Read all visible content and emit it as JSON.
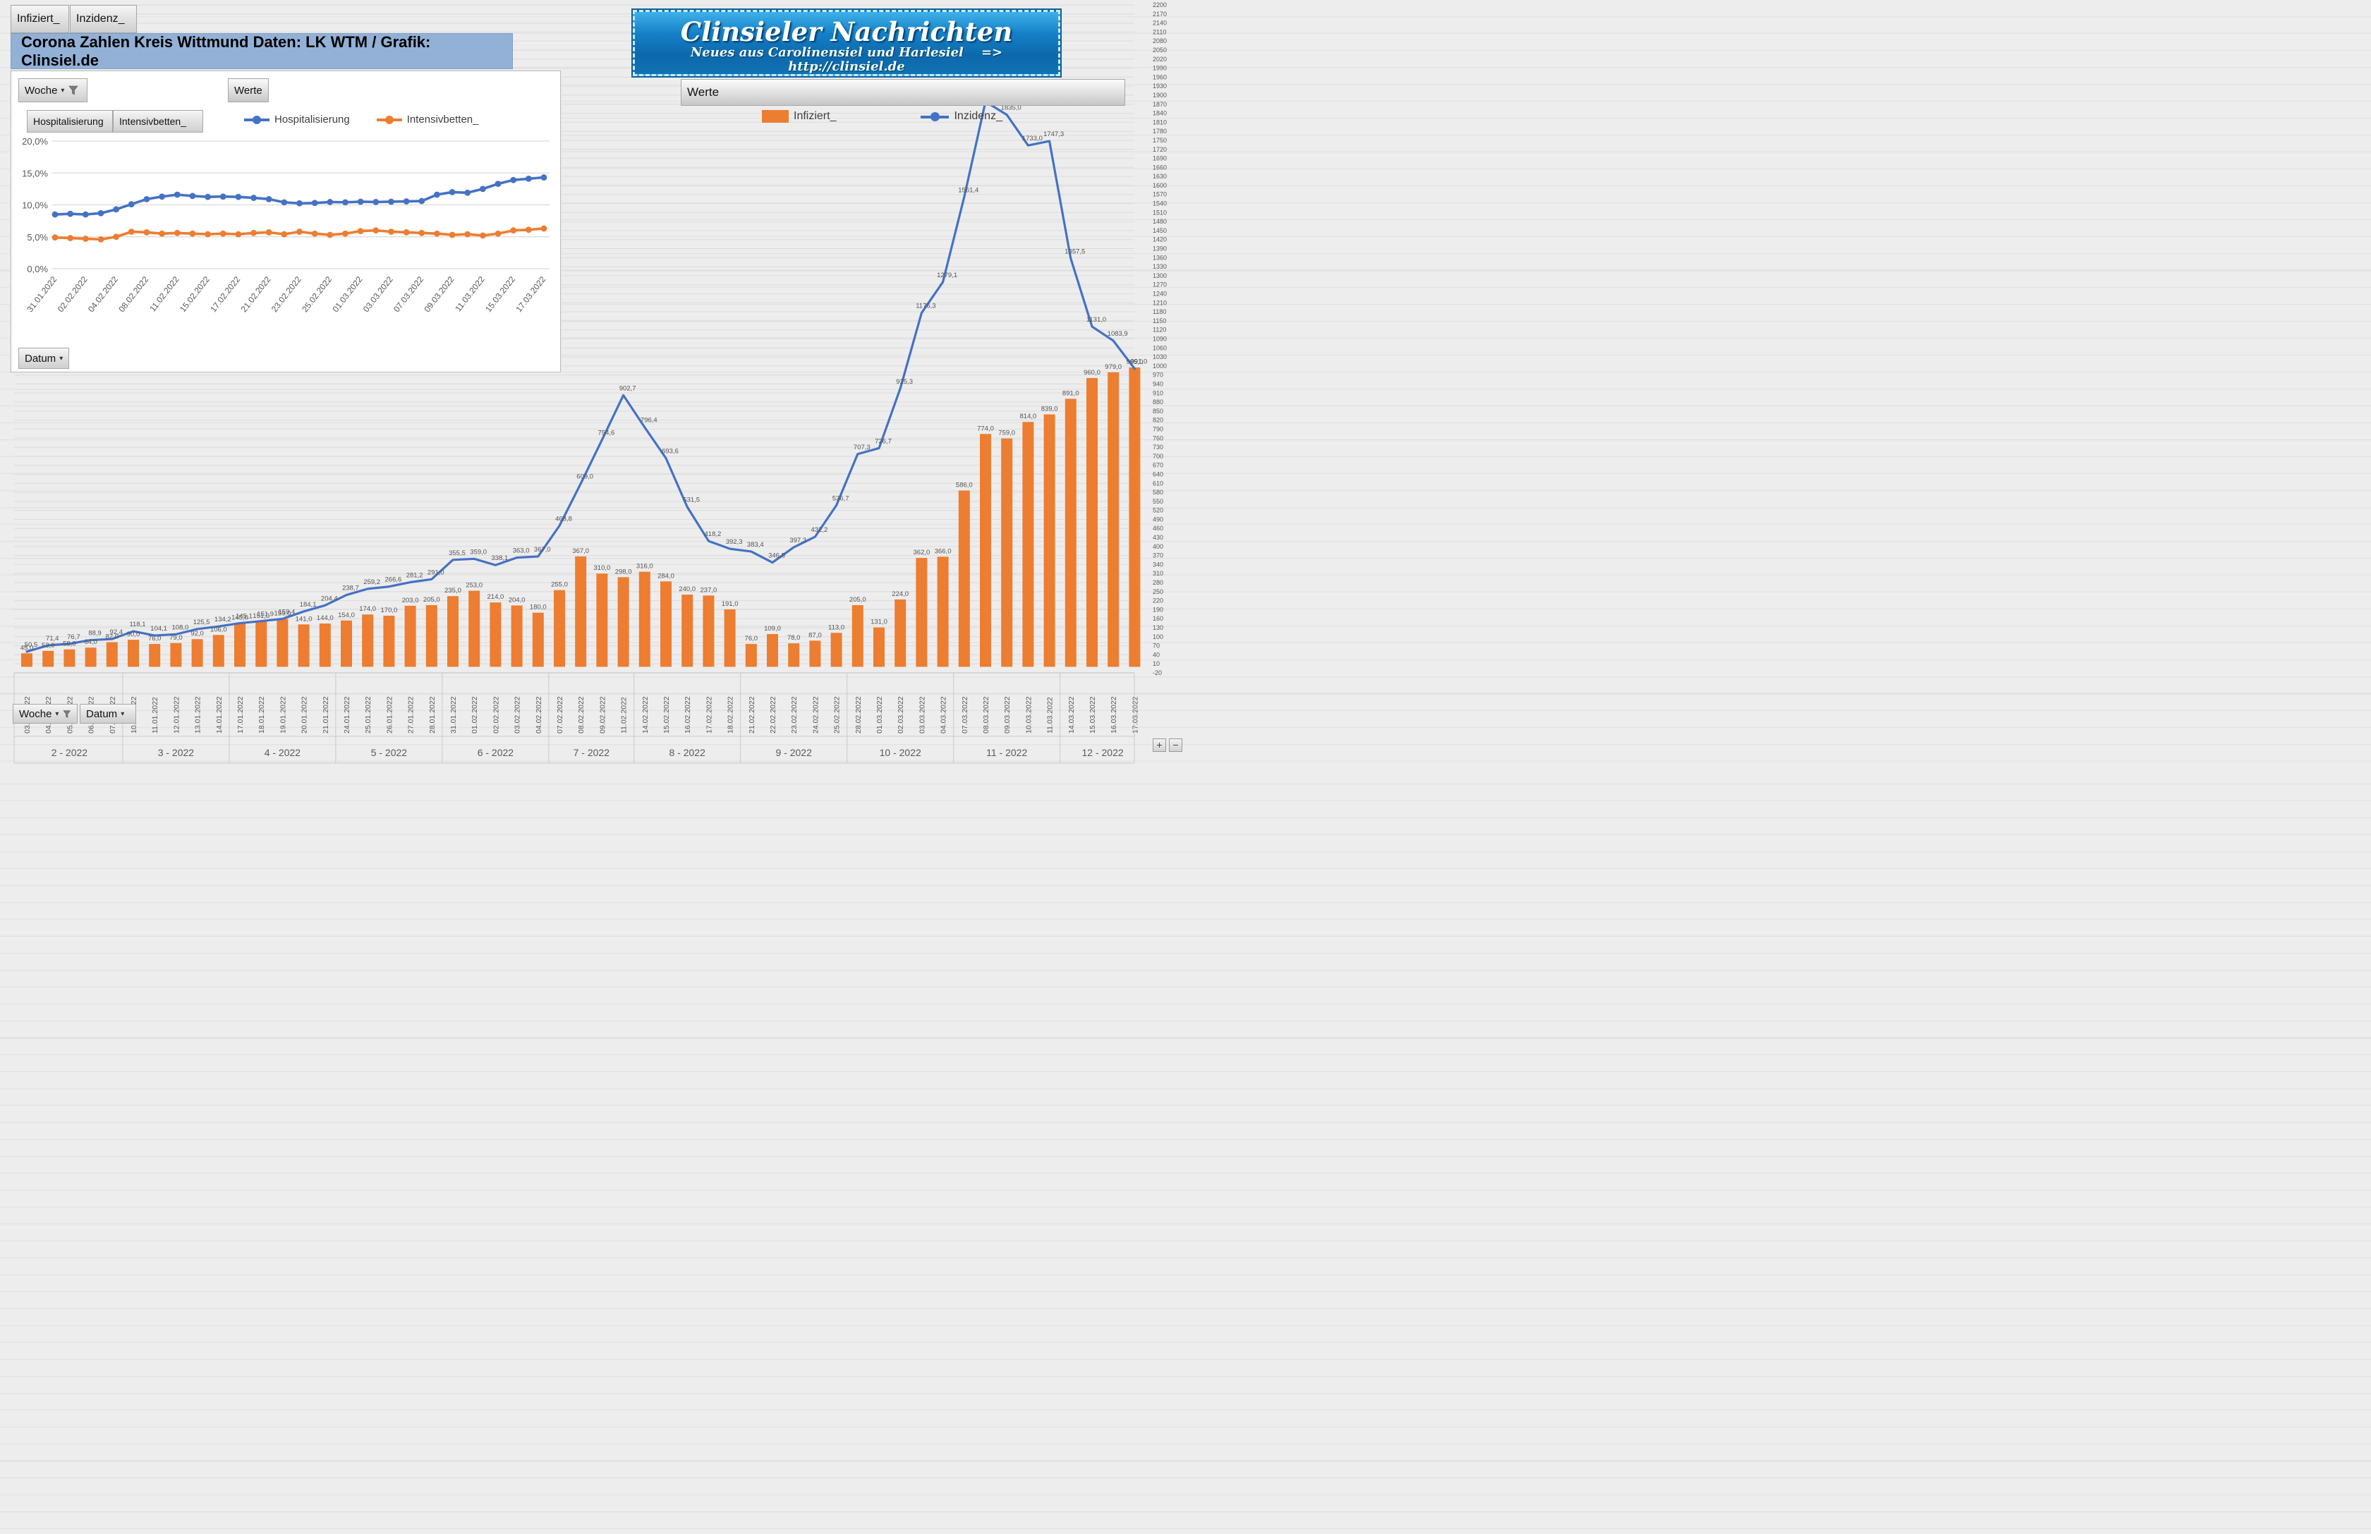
{
  "tabs": [
    {
      "label": "Infiziert_"
    },
    {
      "label": "Inzidenz_"
    }
  ],
  "title": "Corona Zahlen Kreis Wittmund  Daten: LK WTM / Grafik: Clinsiel.de",
  "banner": {
    "line1": "Clinsieler Nachrichten",
    "line2": "Neues aus Carolinensiel und Harlesiel",
    "line2b": "=> http://clinsiel.de"
  },
  "inset": {
    "woche_button": "Woche",
    "werte_button": "Werte",
    "datum_button": "Datum",
    "field_buttons": [
      "Hospitalisierung",
      "Intensivbetten_"
    ],
    "legend": [
      {
        "label": "Hospitalisierung",
        "color": "#4472C4"
      },
      {
        "label": "Intensivbetten_",
        "color": "#ED7D31"
      }
    ]
  },
  "main": {
    "werte_header": "Werte",
    "woche_button": "Woche",
    "datum_button": "Datum",
    "zoom_plus": "+",
    "zoom_minus": "−",
    "legend": [
      {
        "label": "Infiziert_",
        "color": "#ED7D31",
        "type": "bar"
      },
      {
        "label": "Inzidenz_",
        "color": "#4472C4",
        "type": "line"
      }
    ]
  },
  "chart_data": [
    {
      "type": "line",
      "title": "",
      "x": [
        "31.01.2022",
        "01.02.2022",
        "02.02.2022",
        "03.02.2022",
        "04.02.2022",
        "07.02.2022",
        "08.02.2022",
        "09.02.2022",
        "11.02.2022",
        "14.02.2022",
        "15.02.2022",
        "16.02.2022",
        "17.02.2022",
        "18.02.2022",
        "21.02.2022",
        "22.02.2022",
        "23.02.2022",
        "24.02.2022",
        "25.02.2022",
        "28.02.2022",
        "01.03.2022",
        "02.03.2022",
        "03.03.2022",
        "04.03.2022",
        "07.03.2022",
        "08.03.2022",
        "09.03.2022",
        "10.03.2022",
        "11.03.2022",
        "14.03.2022",
        "15.03.2022",
        "16.03.2022",
        "17.03.2022"
      ],
      "x_tick_every": 2,
      "ylabel": "",
      "y_axis": {
        "min": 0,
        "max": 20,
        "step": 5,
        "format": "percent-comma"
      },
      "grid": true,
      "legend_position": "top",
      "series": [
        {
          "name": "Hospitalisierung",
          "color": "#4472C4",
          "values": [
            8.5,
            8.6,
            8.5,
            8.7,
            9.3,
            10.1,
            10.9,
            11.3,
            11.6,
            11.4,
            11.25,
            11.3,
            11.25,
            11.1,
            10.9,
            10.4,
            10.25,
            10.3,
            10.45,
            10.4,
            10.5,
            10.45,
            10.5,
            10.55,
            10.6,
            11.6,
            12.0,
            11.9,
            12.5,
            13.3,
            13.9,
            14.1,
            14.3
          ]
        },
        {
          "name": "Intensivbetten_",
          "color": "#ED7D31",
          "values": [
            4.9,
            4.8,
            4.7,
            4.6,
            5.0,
            5.8,
            5.7,
            5.5,
            5.6,
            5.5,
            5.4,
            5.5,
            5.4,
            5.6,
            5.7,
            5.4,
            5.8,
            5.5,
            5.3,
            5.5,
            5.9,
            6.0,
            5.8,
            5.7,
            5.6,
            5.5,
            5.3,
            5.4,
            5.2,
            5.5,
            6.0,
            6.1,
            6.3
          ]
        }
      ]
    },
    {
      "type": "combo",
      "categories": [
        "03.01.2022",
        "04.01.2022",
        "05.01.2022",
        "06.01.2022",
        "07.01.2022",
        "10.01.2022",
        "11.01.2022",
        "12.01.2022",
        "13.01.2022",
        "14.01.2022",
        "17.01.2022",
        "18.01.2022",
        "19.01.2022",
        "20.01.2022",
        "21.01.2022",
        "24.01.2022",
        "25.01.2022",
        "26.01.2022",
        "27.01.2022",
        "28.01.2022",
        "31.01.2022",
        "01.02.2022",
        "02.02.2022",
        "03.02.2022",
        "04.02.2022",
        "07.02.2022",
        "08.02.2022",
        "09.02.2022",
        "11.02.2022",
        "14.02.2022",
        "15.02.2022",
        "16.02.2022",
        "17.02.2022",
        "18.02.2022",
        "21.02.2022",
        "22.02.2022",
        "23.02.2022",
        "24.02.2022",
        "25.02.2022",
        "28.02.2022",
        "01.03.2022",
        "02.03.2022",
        "03.03.2022",
        "04.03.2022",
        "07.03.2022",
        "08.03.2022",
        "09.03.2022",
        "10.03.2022",
        "11.03.2022",
        "14.03.2022",
        "15.03.2022",
        "16.03.2022",
        "17.03.2022"
      ],
      "week_groups": [
        {
          "label": "2 - 2022",
          "count": 5
        },
        {
          "label": "3 - 2022",
          "count": 5
        },
        {
          "label": "4 - 2022",
          "count": 5
        },
        {
          "label": "5 - 2022",
          "count": 5
        },
        {
          "label": "6 - 2022",
          "count": 5
        },
        {
          "label": "7 - 2022",
          "count": 4
        },
        {
          "label": "8 - 2022",
          "count": 5
        },
        {
          "label": "9 - 2022",
          "count": 5
        },
        {
          "label": "10 - 2022",
          "count": 5
        },
        {
          "label": "11 - 2022",
          "count": 5
        },
        {
          "label": "12 - 2022",
          "count": 4
        }
      ],
      "y_right": {
        "min": -20,
        "max": 2200,
        "step": 30
      },
      "data_labels": true,
      "number_format": "de-1-decimal",
      "grid": true,
      "series": [
        {
          "name": "Infiziert_",
          "type": "bar",
          "color": "#ED7D31",
          "values": [
            45,
            53,
            58,
            64,
            82,
            90,
            76,
            79,
            92,
            106,
            145,
            151,
            159,
            141,
            144,
            154,
            174,
            170,
            203,
            205,
            235,
            253,
            214,
            204,
            180,
            255,
            367,
            310,
            298,
            316,
            284,
            240,
            237,
            191,
            76,
            109,
            78,
            87,
            113,
            205,
            131,
            224,
            362,
            366,
            586,
            774,
            759,
            814,
            839,
            891,
            960,
            979,
            995
          ]
        },
        {
          "name": "Inzidenz_",
          "type": "line",
          "color": "#4472C4",
          "values": [
            50.5,
            71.4,
            76.7,
            88.9,
            92.4,
            118.1,
            104.1,
            108.0,
            125.5,
            134.2,
            145.1,
            151.9,
            159.4,
            184.1,
            204.4,
            238.7,
            259.2,
            266.6,
            281.2,
            291.0,
            355.5,
            359.0,
            338.1,
            363.0,
            367.0,
            468.8,
            609.0,
            754.6,
            902.7,
            796.4,
            693.6,
            531.5,
            418.2,
            392.3,
            383.4,
            346.8,
            397.3,
            432.2,
            536.7,
            707.3,
            726.7,
            925.3,
            1176.3,
            1279.1,
            1561.4,
            1878.6,
            1835.0,
            1733.0,
            1747.3,
            1357.5,
            1131.0,
            1083.9,
            991.0
          ]
        }
      ]
    }
  ]
}
